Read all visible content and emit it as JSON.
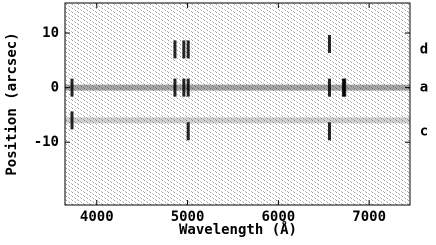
{
  "chart_data": {
    "type": "image",
    "x_label": "Wavelength (Å)",
    "y_label": "Position (arcsec)",
    "xlim": [
      3650,
      7450
    ],
    "xticks": [
      4000,
      5000,
      6000,
      7000
    ],
    "ylim": [
      -21.5,
      15.5
    ],
    "yticks": [
      -10,
      0,
      10
    ],
    "continuum_y": [
      0,
      -6
    ],
    "knots": {
      "x": [
        3727,
        3727,
        4861,
        4861,
        4959,
        4959,
        5007,
        5007,
        5007,
        6563,
        6563,
        6563,
        6717,
        6731
      ],
      "y": [
        0,
        -6,
        7,
        0,
        7,
        0,
        7,
        0,
        -8,
        8,
        0,
        -8,
        0,
        0
      ]
    },
    "color": "#000000",
    "annotations": [
      {
        "text": "d",
        "y": 7
      },
      {
        "text": "a",
        "y": 0
      },
      {
        "text": "c",
        "y": -8
      }
    ]
  }
}
